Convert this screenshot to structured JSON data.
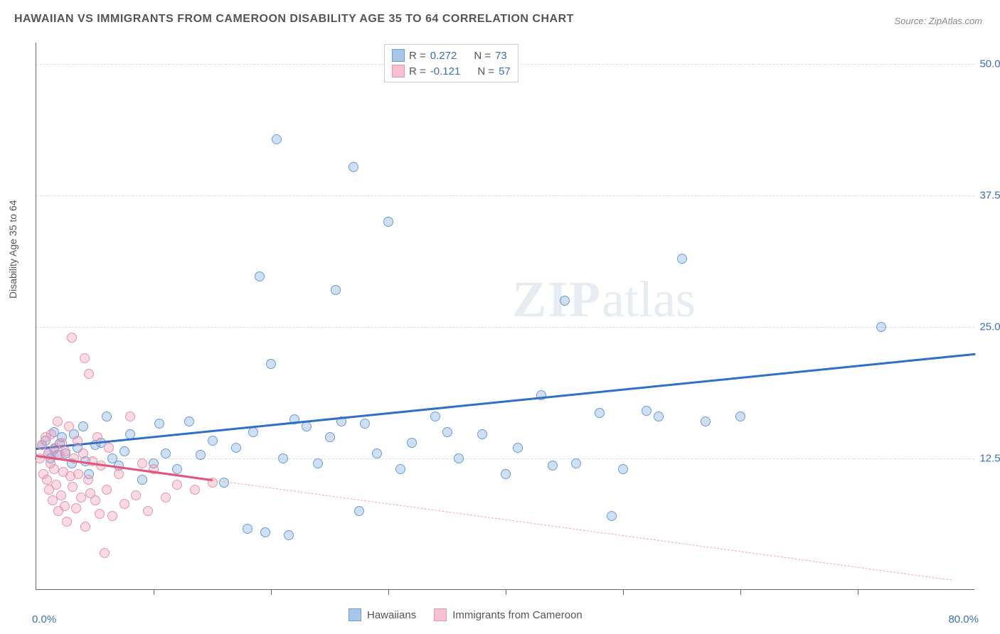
{
  "title": "HAWAIIAN VS IMMIGRANTS FROM CAMEROON DISABILITY AGE 35 TO 64 CORRELATION CHART",
  "source": "Source: ZipAtlas.com",
  "y_axis_label": "Disability Age 35 to 64",
  "watermark": {
    "bold": "ZIP",
    "light": "atlas"
  },
  "chart": {
    "type": "scatter",
    "xlim": [
      0,
      80
    ],
    "ylim": [
      0,
      52
    ],
    "x_min_label": "0.0%",
    "x_max_label": "80.0%",
    "y_ticks": [
      {
        "v": 12.5,
        "label": "12.5%"
      },
      {
        "v": 25.0,
        "label": "25.0%"
      },
      {
        "v": 37.5,
        "label": "37.5%"
      },
      {
        "v": 50.0,
        "label": "50.0%"
      }
    ],
    "x_gridlines": [
      10,
      20,
      30,
      40,
      50,
      60,
      70
    ],
    "background_color": "#ffffff",
    "grid_color": "#dddddd",
    "axis_color": "#666666",
    "tick_label_color": "#3b6fb6",
    "marker_radius": 7,
    "marker_stroke_width": 1
  },
  "series": [
    {
      "name": "Hawaiians",
      "fill": "rgba(120,165,220,0.35)",
      "stroke": "#6a9bd8",
      "swatch_fill": "#a9c6ea",
      "swatch_border": "#6a9bd8",
      "R": "0.272",
      "N": "73",
      "trend": {
        "x1": 0,
        "y1": 13.5,
        "x2": 80,
        "y2": 22.5,
        "color": "#2f6fc9",
        "width": 3,
        "dash": "solid"
      },
      "trend_ext": null,
      "points": [
        [
          0.5,
          13.8
        ],
        [
          0.8,
          14.2
        ],
        [
          1.0,
          13.0
        ],
        [
          1.2,
          12.5
        ],
        [
          1.5,
          15.0
        ],
        [
          1.5,
          13.4
        ],
        [
          1.8,
          12.8
        ],
        [
          2.0,
          13.9
        ],
        [
          2.2,
          14.5
        ],
        [
          2.5,
          13.0
        ],
        [
          3.0,
          12.0
        ],
        [
          3.2,
          14.8
        ],
        [
          3.5,
          13.5
        ],
        [
          4.0,
          15.5
        ],
        [
          4.2,
          12.2
        ],
        [
          4.5,
          11.0
        ],
        [
          5.0,
          13.8
        ],
        [
          5.5,
          14.0
        ],
        [
          6.0,
          16.5
        ],
        [
          6.5,
          12.5
        ],
        [
          7.0,
          11.8
        ],
        [
          7.5,
          13.2
        ],
        [
          8.0,
          14.8
        ],
        [
          9.0,
          10.5
        ],
        [
          10.0,
          12.0
        ],
        [
          10.5,
          15.8
        ],
        [
          11.0,
          13.0
        ],
        [
          12.0,
          11.5
        ],
        [
          13.0,
          16.0
        ],
        [
          14.0,
          12.8
        ],
        [
          15.0,
          14.2
        ],
        [
          16.0,
          10.2
        ],
        [
          17.0,
          13.5
        ],
        [
          18.0,
          5.8
        ],
        [
          18.5,
          15.0
        ],
        [
          19.0,
          29.8
        ],
        [
          19.5,
          5.5
        ],
        [
          20.0,
          21.5
        ],
        [
          20.5,
          42.8
        ],
        [
          21.0,
          12.5
        ],
        [
          21.5,
          5.2
        ],
        [
          22.0,
          16.2
        ],
        [
          23.0,
          15.5
        ],
        [
          24.0,
          12.0
        ],
        [
          25.0,
          14.5
        ],
        [
          25.5,
          28.5
        ],
        [
          26.0,
          16.0
        ],
        [
          27.0,
          40.2
        ],
        [
          27.5,
          7.5
        ],
        [
          28.0,
          15.8
        ],
        [
          29.0,
          13.0
        ],
        [
          30.0,
          35.0
        ],
        [
          31.0,
          11.5
        ],
        [
          32.0,
          14.0
        ],
        [
          34.0,
          16.5
        ],
        [
          35.0,
          15.0
        ],
        [
          36.0,
          12.5
        ],
        [
          38.0,
          14.8
        ],
        [
          40.0,
          11.0
        ],
        [
          41.0,
          13.5
        ],
        [
          43.0,
          18.5
        ],
        [
          44.0,
          11.8
        ],
        [
          45.0,
          27.5
        ],
        [
          46.0,
          12.0
        ],
        [
          48.0,
          16.8
        ],
        [
          49.0,
          7.0
        ],
        [
          50.0,
          11.5
        ],
        [
          52.0,
          17.0
        ],
        [
          53.0,
          16.5
        ],
        [
          55.0,
          31.5
        ],
        [
          57.0,
          16.0
        ],
        [
          60.0,
          16.5
        ],
        [
          72.0,
          25.0
        ]
      ]
    },
    {
      "name": "Immigrants from Cameroon",
      "fill": "rgba(240,150,175,0.35)",
      "stroke": "#e794ac",
      "swatch_fill": "#f5c2d1",
      "swatch_border": "#e794ac",
      "R": "-0.121",
      "N": "57",
      "trend": {
        "x1": 0,
        "y1": 12.8,
        "x2": 15,
        "y2": 10.5,
        "color": "#e6527d",
        "width": 3,
        "dash": "solid"
      },
      "trend_ext": {
        "x1": 15,
        "y1": 10.5,
        "x2": 78,
        "y2": 1.0,
        "color": "#f0a8bd",
        "width": 1,
        "dash": "dashed"
      },
      "points": [
        [
          0.3,
          12.5
        ],
        [
          0.5,
          13.8
        ],
        [
          0.6,
          11.0
        ],
        [
          0.8,
          14.5
        ],
        [
          0.9,
          10.5
        ],
        [
          1.0,
          13.0
        ],
        [
          1.1,
          9.5
        ],
        [
          1.2,
          12.0
        ],
        [
          1.3,
          14.8
        ],
        [
          1.4,
          8.5
        ],
        [
          1.5,
          11.5
        ],
        [
          1.6,
          13.5
        ],
        [
          1.7,
          10.0
        ],
        [
          1.8,
          16.0
        ],
        [
          1.9,
          7.5
        ],
        [
          2.0,
          12.8
        ],
        [
          2.1,
          9.0
        ],
        [
          2.2,
          14.0
        ],
        [
          2.3,
          11.2
        ],
        [
          2.4,
          8.0
        ],
        [
          2.5,
          13.2
        ],
        [
          2.6,
          6.5
        ],
        [
          2.8,
          15.5
        ],
        [
          2.9,
          10.8
        ],
        [
          3.0,
          24.0
        ],
        [
          3.1,
          9.8
        ],
        [
          3.2,
          12.5
        ],
        [
          3.4,
          7.8
        ],
        [
          3.5,
          14.2
        ],
        [
          3.6,
          11.0
        ],
        [
          3.8,
          8.8
        ],
        [
          4.0,
          13.0
        ],
        [
          4.1,
          22.0
        ],
        [
          4.2,
          6.0
        ],
        [
          4.4,
          10.5
        ],
        [
          4.5,
          20.5
        ],
        [
          4.6,
          9.2
        ],
        [
          4.8,
          12.2
        ],
        [
          5.0,
          8.5
        ],
        [
          5.2,
          14.5
        ],
        [
          5.4,
          7.2
        ],
        [
          5.5,
          11.8
        ],
        [
          5.8,
          3.5
        ],
        [
          6.0,
          9.5
        ],
        [
          6.2,
          13.5
        ],
        [
          6.5,
          7.0
        ],
        [
          7.0,
          11.0
        ],
        [
          7.5,
          8.2
        ],
        [
          8.0,
          16.5
        ],
        [
          8.5,
          9.0
        ],
        [
          9.0,
          12.0
        ],
        [
          9.5,
          7.5
        ],
        [
          10.0,
          11.5
        ],
        [
          11.0,
          8.8
        ],
        [
          12.0,
          10.0
        ],
        [
          13.5,
          9.5
        ],
        [
          15.0,
          10.2
        ]
      ]
    }
  ],
  "legend_bottom": [
    {
      "label": "Hawaiians",
      "fill": "#a9c6ea",
      "border": "#6a9bd8"
    },
    {
      "label": "Immigrants from Cameroon",
      "fill": "#f5c2d1",
      "border": "#e794ac"
    }
  ]
}
